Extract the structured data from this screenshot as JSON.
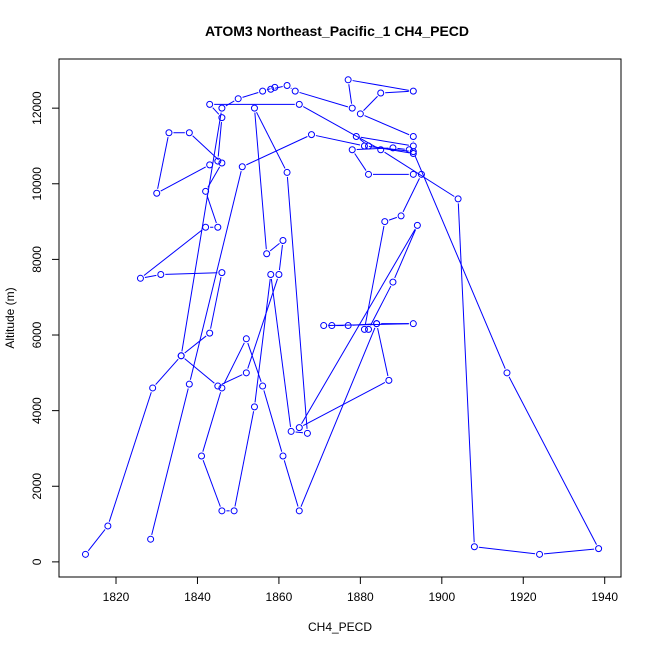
{
  "chart_data": {
    "type": "line",
    "title": "ATOM3 Northeast_Pacific_1 CH4_PECD",
    "xlabel": "CH4_PECD",
    "ylabel": "Altitude (m)",
    "xlim": [
      1806,
      1944
    ],
    "ylim": [
      -400,
      13300
    ],
    "xticks": [
      1820,
      1840,
      1860,
      1880,
      1900,
      1920,
      1940
    ],
    "yticks": [
      0,
      2000,
      4000,
      6000,
      8000,
      10000,
      12000
    ],
    "grid": false,
    "color": "#0000ff",
    "series": [
      {
        "marker": "open-circle",
        "x": [
          1812.5,
          1818,
          1829,
          1836,
          1846,
          1850,
          1856,
          1859,
          1858,
          1862,
          1864,
          1878,
          1877,
          1893,
          1885,
          1880,
          1893,
          1893,
          1879,
          1882,
          1893,
          1892,
          1888,
          1878,
          1882,
          1893,
          1895,
          1890,
          1886,
          1881,
          1882,
          1888,
          1894,
          1865,
          1887,
          1884,
          1877,
          1873,
          1871,
          1893,
          1884,
          1865,
          1861,
          1856,
          1852,
          1846,
          1841,
          1846,
          1849,
          1854,
          1858,
          1863,
          1867,
          1862,
          1854,
          1857,
          1861,
          1860,
          1852,
          1845,
          1836,
          1843,
          1846,
          1831,
          1826,
          1842,
          1845,
          1842,
          1846,
          1838,
          1833,
          1830,
          1843,
          1845,
          1846,
          1843,
          1865,
          1885,
          1904,
          1908,
          1924,
          1938.5,
          1916,
          1893,
          1881,
          1868,
          1851,
          1838,
          1828.5
        ],
        "y": [
          200,
          950,
          4600,
          5450,
          12000,
          12250,
          12450,
          12550,
          12500,
          12600,
          12450,
          12000,
          12750,
          12450,
          12400,
          11850,
          11250,
          11000,
          11250,
          11000,
          10800,
          10900,
          10950,
          10900,
          10250,
          10250,
          10250,
          9150,
          9000,
          6150,
          6150,
          7400,
          8900,
          3550,
          4800,
          6300,
          6250,
          6250,
          6250,
          6300,
          6300,
          1350,
          2800,
          4650,
          5900,
          4600,
          2800,
          1350,
          1350,
          4100,
          7600,
          3450,
          3400,
          10300,
          12000,
          8150,
          8500,
          7600,
          5000,
          4650,
          5450,
          6050,
          7650,
          7600,
          7500,
          8850,
          8850,
          9800,
          10550,
          11350,
          11350,
          9750,
          10500,
          10600,
          11750,
          12100,
          12100,
          10900,
          9600,
          400,
          200,
          350,
          5000,
          10850,
          11000,
          11300,
          10450,
          4700,
          600
        ]
      }
    ]
  }
}
